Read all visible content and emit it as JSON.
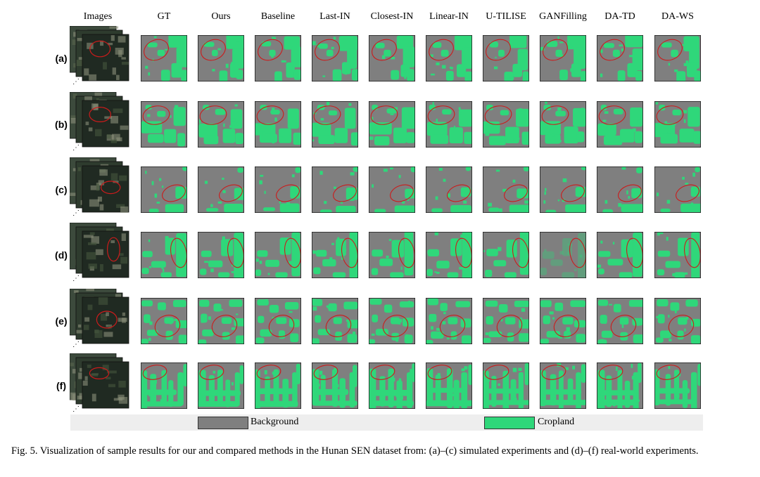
{
  "colors": {
    "background": "#7f7f7f",
    "cropland": "#2fd77a",
    "circle": "#cc1b1b",
    "legend_bar": "#eeeeee"
  },
  "headers": [
    "Images",
    "GT",
    "Ours",
    "Baseline",
    "Last-IN",
    "Closest-IN",
    "Linear-IN",
    "U-TILISE",
    "GANFilling",
    "DA-TD",
    "DA-WS"
  ],
  "rows": [
    {
      "label": "(a)"
    },
    {
      "label": "(b)"
    },
    {
      "label": "(c)"
    },
    {
      "label": "(d)"
    },
    {
      "label": "(e)"
    },
    {
      "label": "(f)"
    }
  ],
  "legend": {
    "background_label": "Background",
    "cropland_label": "Cropland"
  },
  "caption": "Fig. 5.  Visualization of sample results for our and compared methods in the Hunan SEN dataset from: (a)–(c) simulated experiments and (d)–(f) real-world experiments."
}
